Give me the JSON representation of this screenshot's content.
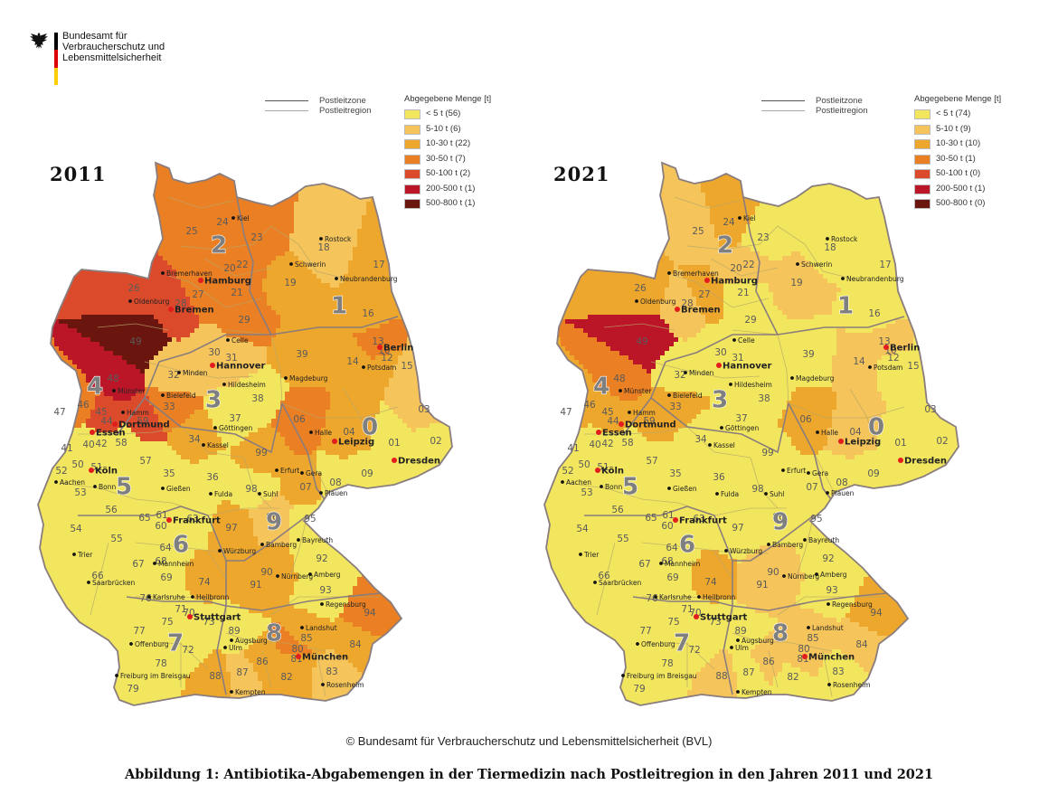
{
  "agency": {
    "lines": [
      "Bundesamt für",
      "Verbraucherschutz und",
      "Lebensmittelsicherheit"
    ],
    "emblem_icon": "federal-eagle-icon",
    "flag_colors": [
      "#000000",
      "#dd0000",
      "#ffce00"
    ]
  },
  "map_legend": {
    "line_items": [
      "Postleitzone",
      "Postleitregion"
    ],
    "title": "Abgegebene Menge [t]"
  },
  "color_scale": [
    "#f2e65e",
    "#f5c45a",
    "#eea72d",
    "#ea7f23",
    "#dc4a2c",
    "#bb1628",
    "#6a160e"
  ],
  "chart_data": [
    {
      "type": "choropleth",
      "year_label": "2011",
      "legend": [
        "< 5 t (56)",
        "5-10 t (6)",
        "10-30 t (22)",
        "30-50 t (7)",
        "50-100 t (2)",
        "200-500 t (1)",
        "500-800 t (1)"
      ],
      "regions": {
        "49": 6,
        "48": 5,
        "26": 4,
        "28": 4,
        "27": 3,
        "45": 4,
        "46": 3,
        "47": 3,
        "44": 4,
        "59": 4,
        "33": 3,
        "24": 3,
        "25": 3,
        "23": 3,
        "22": 3,
        "21": 3,
        "20": 3,
        "29": 3,
        "19": 2,
        "17": 2,
        "16": 2,
        "18": 1,
        "39": 2,
        "06": 3,
        "04": 2,
        "15": 1,
        "03": 1,
        "14": 2,
        "13": 3,
        "12": 2,
        "10": 3,
        "32": 1,
        "30": 1,
        "31": 1,
        "34": 2,
        "99": 2,
        "07": 2,
        "97": 2,
        "96": 1,
        "91": 2,
        "90": 2,
        "74": 2,
        "94": 3,
        "84": 2,
        "85": 2,
        "86": 2,
        "88": 2,
        "87": 1,
        "82": 2,
        "80": 3,
        "81": 2,
        "83": 1,
        "38": 0,
        "37": 0,
        "01": 0,
        "02": 0,
        "08": 0,
        "09": 0,
        "98": 0,
        "36": 0,
        "35": 0,
        "57": 0,
        "58": 0,
        "42": 0,
        "40": 0,
        "41": 0,
        "50": 0,
        "51": 0,
        "52": 0,
        "53": 0,
        "54": 0,
        "55": 0,
        "56": 0,
        "60": 0,
        "61": 0,
        "63": 0,
        "64": 0,
        "65": 0,
        "66": 0,
        "67": 0,
        "68": 0,
        "69": 0,
        "76": 0,
        "71": 0,
        "70": 0,
        "73": 0,
        "75": 0,
        "77": 0,
        "72": 0,
        "78": 0,
        "79": 0,
        "89": 0,
        "95": 0,
        "92": 0,
        "93": 0
      }
    },
    {
      "type": "choropleth",
      "year_label": "2021",
      "legend": [
        "< 5 t (74)",
        "5-10 t (9)",
        "10-30 t (10)",
        "30-50 t (1)",
        "50-100 t (0)",
        "200-500 t (1)",
        "500-800 t (0)"
      ],
      "regions": {
        "49": 5,
        "48": 3,
        "26": 2,
        "28": 1,
        "27": 2,
        "45": 2,
        "46": 2,
        "47": 2,
        "44": 2,
        "59": 2,
        "33": 2,
        "24": 2,
        "25": 1,
        "23": 0,
        "22": 1,
        "21": 0,
        "20": 1,
        "29": 0,
        "19": 1,
        "17": 0,
        "16": 0,
        "18": 0,
        "39": 0,
        "06": 2,
        "04": 1,
        "15": 0,
        "03": 0,
        "14": 1,
        "13": 1,
        "12": 0,
        "10": 1,
        "32": 0,
        "30": 0,
        "31": 0,
        "34": 0,
        "99": 0,
        "07": 0,
        "97": 0,
        "96": 0,
        "91": 1,
        "90": 1,
        "74": 2,
        "94": 2,
        "84": 1,
        "85": 1,
        "86": 1,
        "88": 1,
        "87": 0,
        "82": 0,
        "80": 1,
        "81": 1,
        "83": 0,
        "38": 0,
        "37": 0,
        "01": 0,
        "02": 0,
        "08": 0,
        "09": 0,
        "98": 0,
        "36": 0,
        "35": 0,
        "57": 0,
        "58": 0,
        "42": 0,
        "40": 0,
        "41": 0,
        "50": 0,
        "51": 0,
        "52": 0,
        "53": 0,
        "54": 0,
        "55": 0,
        "56": 0,
        "60": 0,
        "61": 0,
        "63": 0,
        "64": 0,
        "65": 0,
        "66": 0,
        "67": 0,
        "68": 0,
        "69": 0,
        "76": 0,
        "71": 0,
        "70": 0,
        "73": 0,
        "75": 0,
        "77": 0,
        "72": 0,
        "78": 0,
        "79": 0,
        "89": 0,
        "95": 0,
        "92": 0,
        "93": 0
      }
    }
  ],
  "zones": [
    "0",
    "1",
    "2",
    "3",
    "4",
    "5",
    "6",
    "7",
    "8",
    "9"
  ],
  "cities": [
    "Kiel",
    "Rostock",
    "Schwerin",
    "Bremerhaven",
    "Hamburg",
    "Neubrandenburg",
    "Oldenburg",
    "Bremen",
    "Celle",
    "Berlin",
    "Hannover",
    "Potsdam",
    "Magdeburg",
    "Minden",
    "Hildesheim",
    "Münster",
    "Bielefeld",
    "Hamm",
    "Dortmund",
    "Göttingen",
    "Halle",
    "Leipzig",
    "Essen",
    "Kassel",
    "Dresden",
    "Köln",
    "Erfurt",
    "Gera",
    "Aachen",
    "Bonn",
    "Gießen",
    "Fulda",
    "Suhl",
    "Plauen",
    "Frankfurt",
    "Bamberg",
    "Bayreuth",
    "Trier",
    "Würzburg",
    "Mannheim",
    "Nürnberg",
    "Amberg",
    "Saarbrücken",
    "Karlsruhe",
    "Heilbronn",
    "Regensburg",
    "Stuttgart",
    "Landshut",
    "Offenburg",
    "Augsburg",
    "Ulm",
    "München",
    "Freiburg im Breisgau",
    "Kempten",
    "Rosenheim"
  ],
  "copyright": "© Bundesamt für Verbraucherschutz und Lebensmittelsicherheit (BVL)",
  "caption": "Abbildung 1: Antibiotika-Abgabemengen in der Tiermedizin nach Postleitregion in den Jahren 2011 und 2021"
}
